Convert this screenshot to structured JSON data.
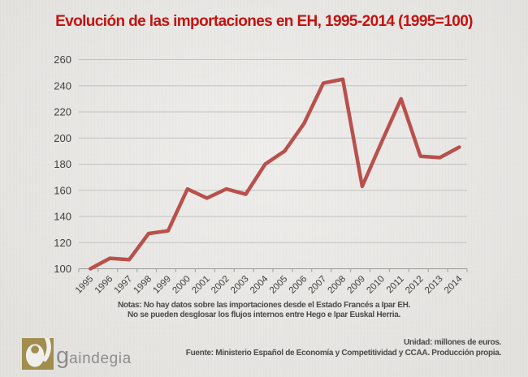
{
  "chart_data": {
    "type": "line",
    "title": "Evolución de las importaciones en EH, 1995-2014 (1995=100)",
    "categories": [
      "1995",
      "1996",
      "1997",
      "1998",
      "1999",
      "2000",
      "2001",
      "2002",
      "2003",
      "2004",
      "2005",
      "2006",
      "2007",
      "2008",
      "2009",
      "2010",
      "2011",
      "2012",
      "2013",
      "2014"
    ],
    "values": [
      100,
      108,
      107,
      127,
      129,
      161,
      154,
      161,
      157,
      180,
      190,
      211,
      242,
      245,
      163,
      197,
      230,
      186,
      185,
      193
    ],
    "xlabel": "",
    "ylabel": "",
    "ylim": [
      100,
      260
    ],
    "ytick_step": 20,
    "grid": true,
    "legend_position": "none",
    "line_color": "#b9504c",
    "gridline_color": "#c2c2c2",
    "axis_line_color": "#9a9a9a",
    "axis_label_color": "#404040"
  },
  "notes": {
    "line1": "Notas: No hay datos sobre las importaciones desde el Estado Francés a Ipar EH.",
    "line2": "No se pueden desglosar los flujos internos entre Hego e Ipar Euskal Herria."
  },
  "footer": {
    "unit": "Unidad: millones de euros.",
    "source": "Fuente: Ministerio Español de Economía y Competitividad y CCAA. Producción propia.",
    "logo": {
      "initial": "g",
      "rest": "aindegia",
      "icon_color": "#a18e4f",
      "icon_paper_color": "#f0efec",
      "text_color": "#8d8d8d"
    }
  },
  "colors": {
    "background": "#eae9e6",
    "title": "#c41311",
    "notes_text": "#4a4a4a"
  }
}
